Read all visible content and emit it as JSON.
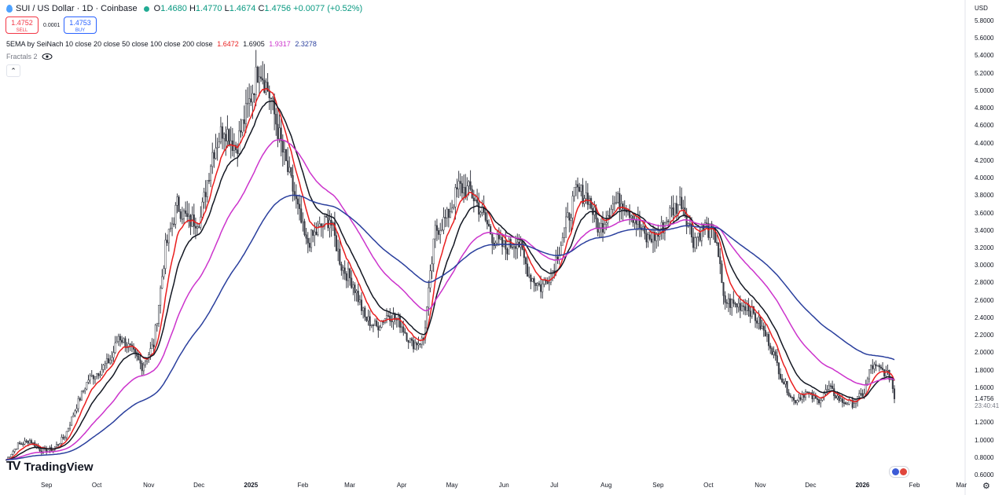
{
  "header": {
    "title": "SUI / US Dollar · 1D · Coinbase",
    "ohlc": {
      "o_label": "O",
      "o": "1.4680",
      "h_label": "H",
      "h": "1.4770",
      "l_label": "L",
      "l": "1.4674",
      "c_label": "C",
      "c": "1.4756",
      "change": "+0.0077 (+0.52%)"
    }
  },
  "trade": {
    "sell_price": "1.4752",
    "sell_label": "SELL",
    "spread": "0.0001",
    "buy_price": "1.4753",
    "buy_label": "BUY"
  },
  "indicator": {
    "name": "5EMA by SeiNach 10 close 20 close 50 close 100 close 200 close",
    "values": [
      {
        "value": "1.6472",
        "color": "#e91e1e"
      },
      {
        "value": "1.6905",
        "color": "#131722"
      },
      {
        "value": "1.9317",
        "color": "#cc33cc"
      },
      {
        "value": "2.3278",
        "color": "#2a3f9d"
      }
    ]
  },
  "fractals": {
    "label": "Fractals 2"
  },
  "axis": {
    "currency": "USD",
    "y_ticks": [
      "5.8000",
      "5.6000",
      "5.4000",
      "5.2000",
      "5.0000",
      "4.8000",
      "4.6000",
      "4.4000",
      "4.2000",
      "4.0000",
      "3.8000",
      "3.6000",
      "3.4000",
      "3.2000",
      "3.0000",
      "2.8000",
      "2.6000",
      "2.4000",
      "2.2000",
      "2.0000",
      "1.8000",
      "1.6000",
      "1.2000",
      "1.0000",
      "0.8000",
      "0.6000"
    ],
    "x_ticks": [
      "Sep",
      "Oct",
      "Nov",
      "Dec",
      "2025",
      "Feb",
      "Mar",
      "Apr",
      "May",
      "Jun",
      "Jul",
      "Aug",
      "Sep",
      "Oct",
      "Nov",
      "Dec",
      "2026",
      "Feb",
      "Mar"
    ],
    "current_price": "1.4756",
    "countdown": "23:40:41"
  },
  "brand": {
    "logo_text": "TradingView"
  },
  "chart_data": {
    "type": "candlestick",
    "symbol": "SUI / US Dollar",
    "interval": "1D",
    "y_range": [
      0.6,
      5.9
    ],
    "close_path": [
      {
        "date": "2024-08-08",
        "close": 0.78
      },
      {
        "date": "2024-08-15",
        "close": 0.95
      },
      {
        "date": "2024-08-22",
        "close": 1.0
      },
      {
        "date": "2024-08-29",
        "close": 0.88
      },
      {
        "date": "2024-09-05",
        "close": 0.9
      },
      {
        "date": "2024-09-12",
        "close": 1.05
      },
      {
        "date": "2024-09-19",
        "close": 1.4
      },
      {
        "date": "2024-09-26",
        "close": 1.7
      },
      {
        "date": "2024-10-03",
        "close": 1.8
      },
      {
        "date": "2024-10-10",
        "close": 1.95
      },
      {
        "date": "2024-10-14",
        "close": 2.2
      },
      {
        "date": "2024-10-21",
        "close": 2.05
      },
      {
        "date": "2024-10-28",
        "close": 1.85
      },
      {
        "date": "2024-11-04",
        "close": 2.1
      },
      {
        "date": "2024-11-11",
        "close": 3.2
      },
      {
        "date": "2024-11-18",
        "close": 3.7
      },
      {
        "date": "2024-11-25",
        "close": 3.5
      },
      {
        "date": "2024-12-02",
        "close": 3.55
      },
      {
        "date": "2024-12-09",
        "close": 4.3
      },
      {
        "date": "2024-12-16",
        "close": 4.6
      },
      {
        "date": "2024-12-23",
        "close": 4.35
      },
      {
        "date": "2024-12-30",
        "close": 4.8
      },
      {
        "date": "2025-01-06",
        "close": 5.3
      },
      {
        "date": "2025-01-13",
        "close": 4.9
      },
      {
        "date": "2025-01-20",
        "close": 4.3
      },
      {
        "date": "2025-01-27",
        "close": 3.8
      },
      {
        "date": "2025-02-03",
        "close": 3.25
      },
      {
        "date": "2025-02-10",
        "close": 3.4
      },
      {
        "date": "2025-02-17",
        "close": 3.55
      },
      {
        "date": "2025-02-24",
        "close": 3.0
      },
      {
        "date": "2025-03-03",
        "close": 2.8
      },
      {
        "date": "2025-03-10",
        "close": 2.4
      },
      {
        "date": "2025-03-17",
        "close": 2.3
      },
      {
        "date": "2025-03-24",
        "close": 2.45
      },
      {
        "date": "2025-03-31",
        "close": 2.35
      },
      {
        "date": "2025-04-07",
        "close": 2.1
      },
      {
        "date": "2025-04-14",
        "close": 2.15
      },
      {
        "date": "2025-04-21",
        "close": 3.4
      },
      {
        "date": "2025-04-28",
        "close": 3.55
      },
      {
        "date": "2025-05-05",
        "close": 3.9
      },
      {
        "date": "2025-05-12",
        "close": 3.85
      },
      {
        "date": "2025-05-19",
        "close": 3.6
      },
      {
        "date": "2025-05-26",
        "close": 3.3
      },
      {
        "date": "2025-06-02",
        "close": 3.2
      },
      {
        "date": "2025-06-09",
        "close": 3.3
      },
      {
        "date": "2025-06-16",
        "close": 2.9
      },
      {
        "date": "2025-06-23",
        "close": 2.75
      },
      {
        "date": "2025-06-30",
        "close": 2.95
      },
      {
        "date": "2025-07-07",
        "close": 3.4
      },
      {
        "date": "2025-07-14",
        "close": 3.85
      },
      {
        "date": "2025-07-21",
        "close": 3.8
      },
      {
        "date": "2025-07-28",
        "close": 3.4
      },
      {
        "date": "2025-08-04",
        "close": 3.7
      },
      {
        "date": "2025-08-11",
        "close": 3.75
      },
      {
        "date": "2025-08-18",
        "close": 3.55
      },
      {
        "date": "2025-08-25",
        "close": 3.3
      },
      {
        "date": "2025-09-01",
        "close": 3.35
      },
      {
        "date": "2025-09-08",
        "close": 3.6
      },
      {
        "date": "2025-09-15",
        "close": 3.75
      },
      {
        "date": "2025-09-22",
        "close": 3.3
      },
      {
        "date": "2025-09-29",
        "close": 3.45
      },
      {
        "date": "2025-10-06",
        "close": 3.3
      },
      {
        "date": "2025-10-10",
        "close": 2.6
      },
      {
        "date": "2025-10-17",
        "close": 2.55
      },
      {
        "date": "2025-10-24",
        "close": 2.55
      },
      {
        "date": "2025-10-31",
        "close": 2.35
      },
      {
        "date": "2025-11-07",
        "close": 2.1
      },
      {
        "date": "2025-11-14",
        "close": 1.7
      },
      {
        "date": "2025-11-21",
        "close": 1.45
      },
      {
        "date": "2025-11-28",
        "close": 1.55
      },
      {
        "date": "2025-12-05",
        "close": 1.45
      },
      {
        "date": "2025-12-12",
        "close": 1.6
      },
      {
        "date": "2025-12-19",
        "close": 1.45
      },
      {
        "date": "2025-12-26",
        "close": 1.42
      },
      {
        "date": "2026-01-02",
        "close": 1.55
      },
      {
        "date": "2026-01-06",
        "close": 1.85
      },
      {
        "date": "2026-01-13",
        "close": 1.8
      },
      {
        "date": "2026-01-18",
        "close": 1.72
      },
      {
        "date": "2026-01-20",
        "close": 1.4756
      }
    ],
    "series": [
      {
        "name": "EMA 10",
        "color": "#e91e1e",
        "last": 1.6472
      },
      {
        "name": "EMA 20",
        "color": "#131722",
        "last": 1.6905
      },
      {
        "name": "EMA 50",
        "color": "#cc33cc",
        "last": 1.9317
      },
      {
        "name": "EMA 100",
        "color": "#2a3f9d",
        "last": 2.3278
      }
    ]
  }
}
